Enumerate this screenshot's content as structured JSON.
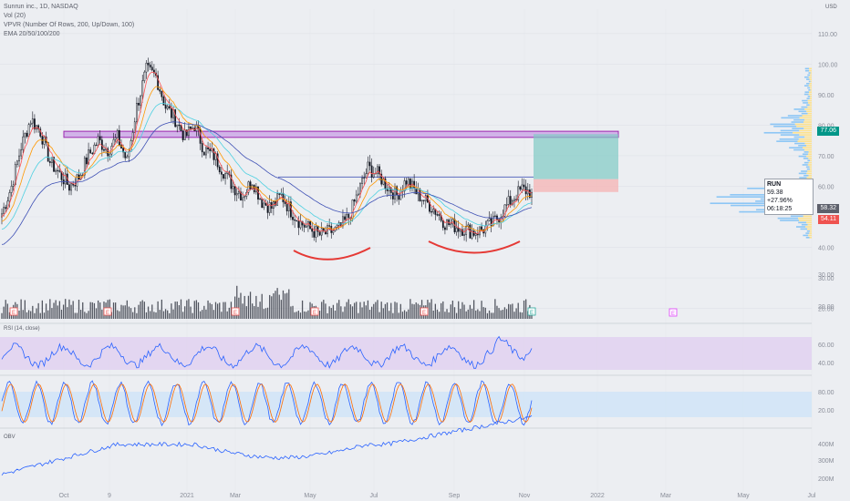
{
  "legend": {
    "line1": "Sunrun inc., 1D, NASDAQ",
    "line2": "Vol (20)",
    "line3": "VPVR (Number Of Rows, 200, Up/Down, 100)",
    "line4": "EMA 20/50/100/200"
  },
  "panes": {
    "rsi": "RSI (14, close)",
    "obv": "OBV"
  },
  "price_box": {
    "symbol": "RUN",
    "price": "59.38",
    "change": "+27.96%",
    "countdown": "06:18:25"
  },
  "tags": {
    "target": "77.06",
    "entry": "58.32",
    "stop": "54.11"
  },
  "currency": "USD",
  "colors": {
    "up": "#26a69a",
    "down": "#ef5350",
    "bar": "#2a2e39",
    "ema20": "#ff5252",
    "ema50": "#ff9800",
    "ema100": "#4dd0e1",
    "ema200": "#3f51b5",
    "rsi": "#2962ff",
    "stoch_k": "#2962ff",
    "stoch_d": "#ff6d00",
    "obv": "#2962ff",
    "zone": "#9c27b0",
    "profit": "#80cbc4",
    "loss": "#f5b7b7",
    "annotation": "#e53935"
  },
  "chart_data": {
    "type": "candlestick",
    "x_ticks": [
      "Oct",
      "9",
      "2021",
      "Mar",
      "May",
      "Jul",
      "Sep",
      "Nov",
      "2022",
      "Mar",
      "May",
      "Jul"
    ],
    "y_ticks": [
      20,
      30,
      40,
      50,
      60,
      70,
      80,
      90,
      100,
      110
    ],
    "ylim": [
      16,
      118
    ],
    "close": [
      51,
      60,
      73,
      82,
      78,
      68,
      64,
      60,
      63,
      70,
      75,
      72,
      76,
      68,
      86,
      98,
      96,
      86,
      82,
      76,
      80,
      72,
      70,
      65,
      60,
      57,
      62,
      55,
      53,
      57,
      52,
      48,
      46,
      44,
      45,
      46,
      50,
      58,
      66,
      64,
      60,
      57,
      62,
      58,
      55,
      52,
      48,
      47,
      46,
      45,
      46,
      48,
      52,
      56,
      59,
      58
    ],
    "vol_labels": [
      "30.00",
      "20.00"
    ],
    "rsi_ticks": [
      "60.00",
      "40.00"
    ],
    "stoch_ticks": [
      "80.00",
      "20.00"
    ],
    "obv_ticks": [
      "400M",
      "300M",
      "200M"
    ],
    "earnings_marker": "E",
    "zone": [
      76,
      78
    ],
    "resistance": 63,
    "target": 77.06,
    "entry": 58.32,
    "stop": 54.11
  }
}
